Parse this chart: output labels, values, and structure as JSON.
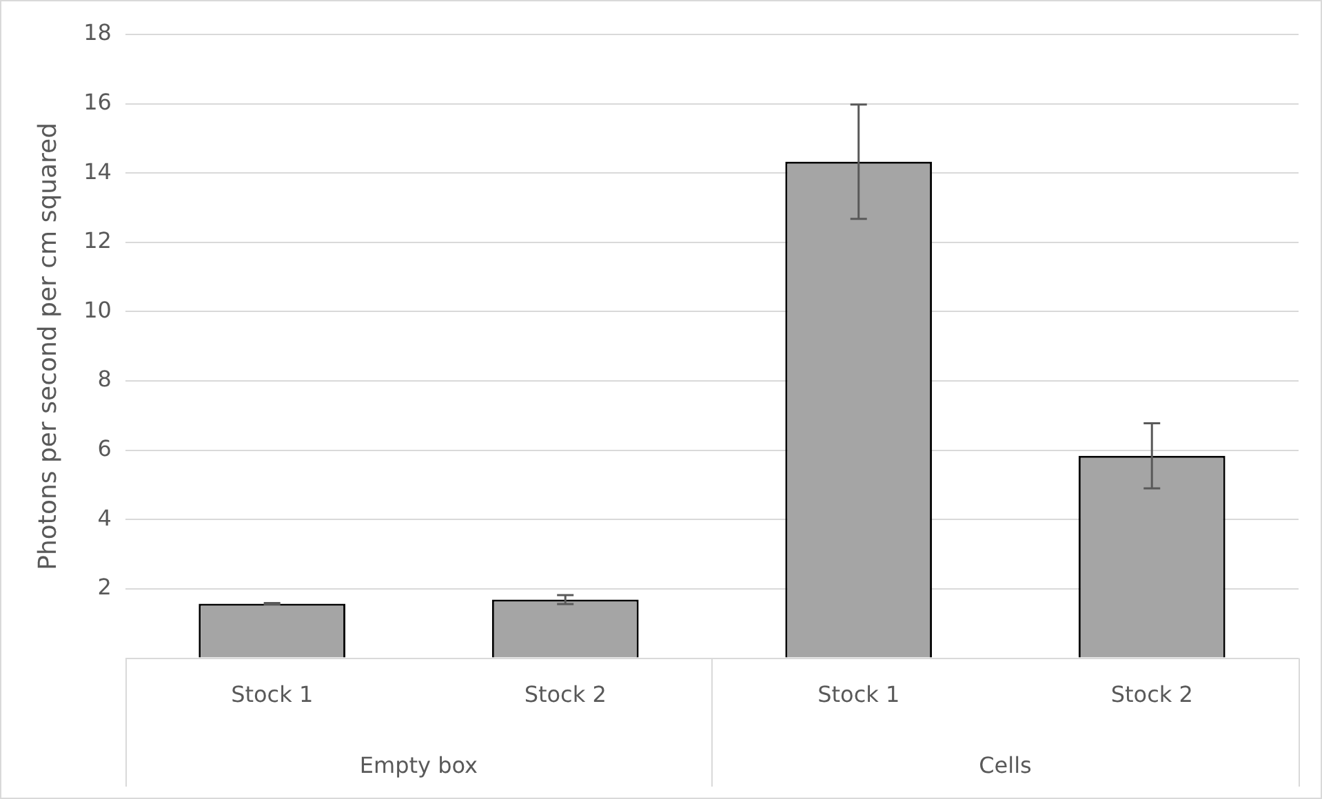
{
  "chart_data": {
    "type": "bar",
    "ylabel": "Photons per second per cm squared",
    "categories": [
      "Stock 1",
      "Stock 2",
      "Stock 1",
      "Stock 2"
    ],
    "values": [
      1.57,
      1.69,
      14.33,
      5.84
    ],
    "errors": [
      0.02,
      0.13,
      1.65,
      0.94
    ],
    "color": "#a5a5a5",
    "annotations": [
      "Empty box",
      "Cells"
    ],
    "ylim": [
      0,
      18
    ],
    "yticks": [
      {
        "value": 0,
        "label": null
      },
      2,
      4,
      6,
      8,
      10,
      12,
      14,
      16,
      18
    ],
    "grid": "y",
    "legend": false
  }
}
